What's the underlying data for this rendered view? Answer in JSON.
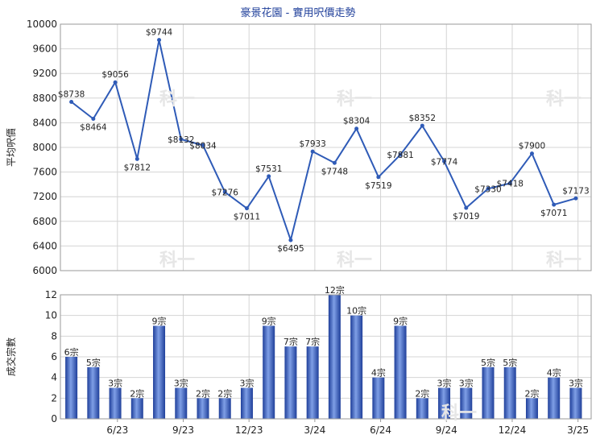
{
  "chart_data": [
    {
      "type": "line",
      "title": "豪景花園 - 實用呎價走勢",
      "ylabel": "平均呎價",
      "ylim": [
        6000,
        10000
      ],
      "y_ticks": [
        6000,
        6400,
        6800,
        7200,
        7600,
        8000,
        8400,
        8800,
        9200,
        9600,
        10000
      ],
      "grid": true,
      "series": [
        {
          "color": "#2f5bb7",
          "values": [
            8738,
            8464,
            9056,
            7812,
            9744,
            8132,
            8034,
            7276,
            7011,
            7531,
            6495,
            7933,
            7748,
            8304,
            7519,
            7881,
            8352,
            7774,
            7019,
            7330,
            7418,
            7900,
            7071,
            7173
          ],
          "labels": [
            "$8738",
            "$8464",
            "$9056",
            "$7812",
            "$9744",
            "$8132",
            "$8034",
            "$7276",
            "$7011",
            "$7531",
            "$6495",
            "$7933",
            "$7748",
            "$8304",
            "$7519",
            "$7881",
            "$8352",
            "$7774",
            "$7019",
            "$7330",
            "$7418",
            "$7900",
            "$7071",
            "$7173"
          ]
        }
      ]
    },
    {
      "type": "bar",
      "ylabel": "成交宗數",
      "ylim": [
        0,
        12
      ],
      "y_ticks": [
        0,
        2,
        4,
        6,
        8,
        10,
        12
      ],
      "x_tick_labels": [
        "6/23",
        "9/23",
        "12/23",
        "3/24",
        "6/24",
        "9/24",
        "12/24",
        "3/25"
      ],
      "grid": true,
      "series": [
        {
          "color": "#3c63c4",
          "values": [
            6,
            5,
            3,
            2,
            9,
            3,
            2,
            2,
            3,
            9,
            7,
            7,
            12,
            10,
            4,
            9,
            2,
            3,
            3,
            5,
            5,
            2,
            4,
            3
          ],
          "labels": [
            "6宗",
            "5宗",
            "3宗",
            "2宗",
            "9宗",
            "3宗",
            "2宗",
            "2宗",
            "3宗",
            "9宗",
            "7宗",
            "7宗",
            "12宗",
            "10宗",
            "4宗",
            "9宗",
            "2宗",
            "3宗",
            "3宗",
            "5宗",
            "5宗",
            "2宗",
            "4宗",
            "3宗"
          ]
        }
      ]
    }
  ],
  "watermark": "科一"
}
